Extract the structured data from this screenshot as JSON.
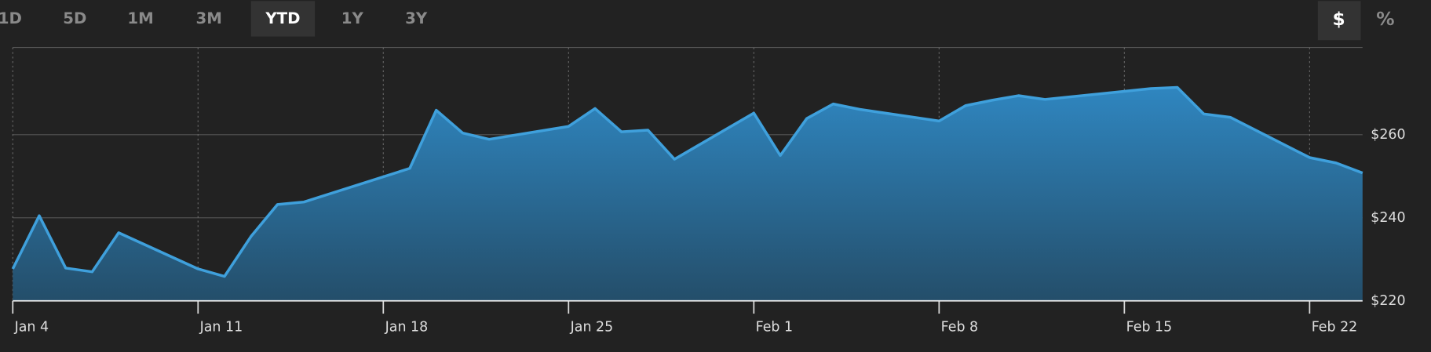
{
  "toolbar": {
    "ranges": [
      "1D",
      "5D",
      "1M",
      "3M",
      "YTD",
      "1Y",
      "3Y"
    ],
    "active_range_index": 4,
    "units": [
      "$",
      "%"
    ],
    "active_unit_index": 0
  },
  "chart_data": {
    "type": "area",
    "x": [
      "Jan 4",
      "Jan 5",
      "Jan 6",
      "Jan 7",
      "Jan 8",
      "Jan 11",
      "Jan 12",
      "Jan 13",
      "Jan 14",
      "Jan 15",
      "Jan 19",
      "Jan 20",
      "Jan 21",
      "Jan 22",
      "Jan 25",
      "Jan 26",
      "Jan 27",
      "Jan 28",
      "Jan 29",
      "Feb 1",
      "Feb 2",
      "Feb 3",
      "Feb 4",
      "Feb 5",
      "Feb 8",
      "Feb 9",
      "Feb 10",
      "Feb 11",
      "Feb 12",
      "Feb 16",
      "Feb 17",
      "Feb 18",
      "Feb 19",
      "Feb 22",
      "Feb 23",
      "Feb 24"
    ],
    "series": [
      {
        "color": "#3fa0dc",
        "values": [
          227.7,
          240.5,
          227.9,
          227,
          236.4,
          227.7,
          225.9,
          235.5,
          243.2,
          243.8,
          251.9,
          265.9,
          260.4,
          258.9,
          262,
          266.3,
          260.7,
          261.1,
          254.1,
          265.2,
          255,
          263.9,
          267.4,
          266.1,
          263.3,
          267,
          268.3,
          269.4,
          268.5,
          271.1,
          271.4,
          265,
          264.2,
          254.5,
          253.2,
          250.8
        ]
      }
    ],
    "xlim": [
      "Jan 4",
      "Feb 24"
    ],
    "xticks": [
      "Jan 4",
      "Jan 11",
      "Jan 18",
      "Jan 25",
      "Feb 1",
      "Feb 8",
      "Feb 15",
      "Feb 22"
    ],
    "ylim": [
      220,
      281
    ],
    "yticks": [
      {
        "value": 220,
        "label": "$220"
      },
      {
        "value": 240,
        "label": "$240"
      },
      {
        "value": 260,
        "label": "$260"
      }
    ],
    "grid": true
  }
}
